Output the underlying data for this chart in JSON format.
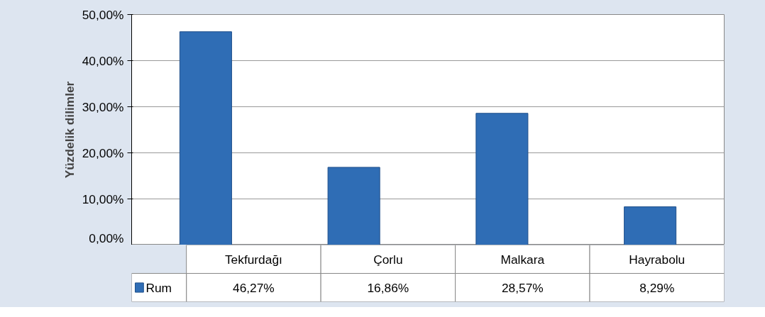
{
  "chart_data": {
    "type": "bar",
    "ylabel": "Yüzdelik dilimler",
    "categories": [
      "Tekfurdağı",
      "Çorlu",
      "Malkara",
      "Hayrabolu"
    ],
    "series": [
      {
        "name": "Rum",
        "color": "#2f6db5",
        "values": [
          46.27,
          16.86,
          28.57,
          8.29
        ],
        "value_labels": [
          "46,27%",
          "16,86%",
          "28,57%",
          "8,29%"
        ]
      }
    ],
    "ylim": [
      0,
      50
    ],
    "yticks": [
      {
        "value": 0,
        "label": "0,00%"
      },
      {
        "value": 10,
        "label": "10,00%"
      },
      {
        "value": 20,
        "label": "20,00%"
      },
      {
        "value": 30,
        "label": "30,00%"
      },
      {
        "value": 40,
        "label": "40,00%"
      },
      {
        "value": 50,
        "label": "50,00%"
      }
    ],
    "grid": "y",
    "legend": "bottom"
  }
}
